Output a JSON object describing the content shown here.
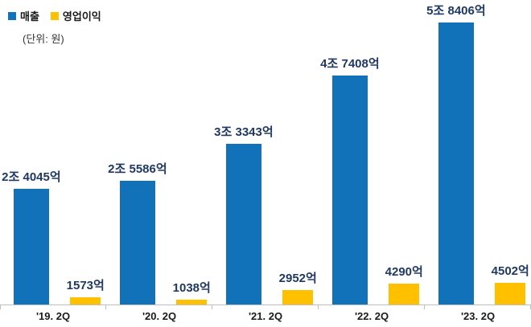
{
  "legend": {
    "items": [
      {
        "label": "매출",
        "color": "#1272B9"
      },
      {
        "label": "영업이익",
        "color": "#FFC000"
      }
    ],
    "unit_note": "(단위: 원)"
  },
  "chart_data": {
    "type": "bar",
    "title": "",
    "categories": [
      "'19. 2Q",
      "'20. 2Q",
      "'21. 2Q",
      "'22. 2Q",
      "'23. 2Q"
    ],
    "series": [
      {
        "name": "매출",
        "color": "#1272B9",
        "values": [
          24045,
          25586,
          33343,
          47408,
          58406
        ],
        "labels": [
          "2조 4045억",
          "2조 5586억",
          "3조 3343억",
          "4조 7408억",
          "5조 8406억"
        ]
      },
      {
        "name": "영업이익",
        "color": "#FFC000",
        "values": [
          1573,
          1038,
          2952,
          4290,
          4502
        ],
        "labels": [
          "1573억",
          "1038억",
          "2952억",
          "4290억",
          "4502억"
        ]
      }
    ],
    "xlabel": "",
    "ylabel": "",
    "ylim": [
      0,
      58406
    ],
    "grid": false,
    "legend_position": "top-left",
    "axis_color": "#BFBFBF",
    "value_label_color": "#1F3864"
  }
}
